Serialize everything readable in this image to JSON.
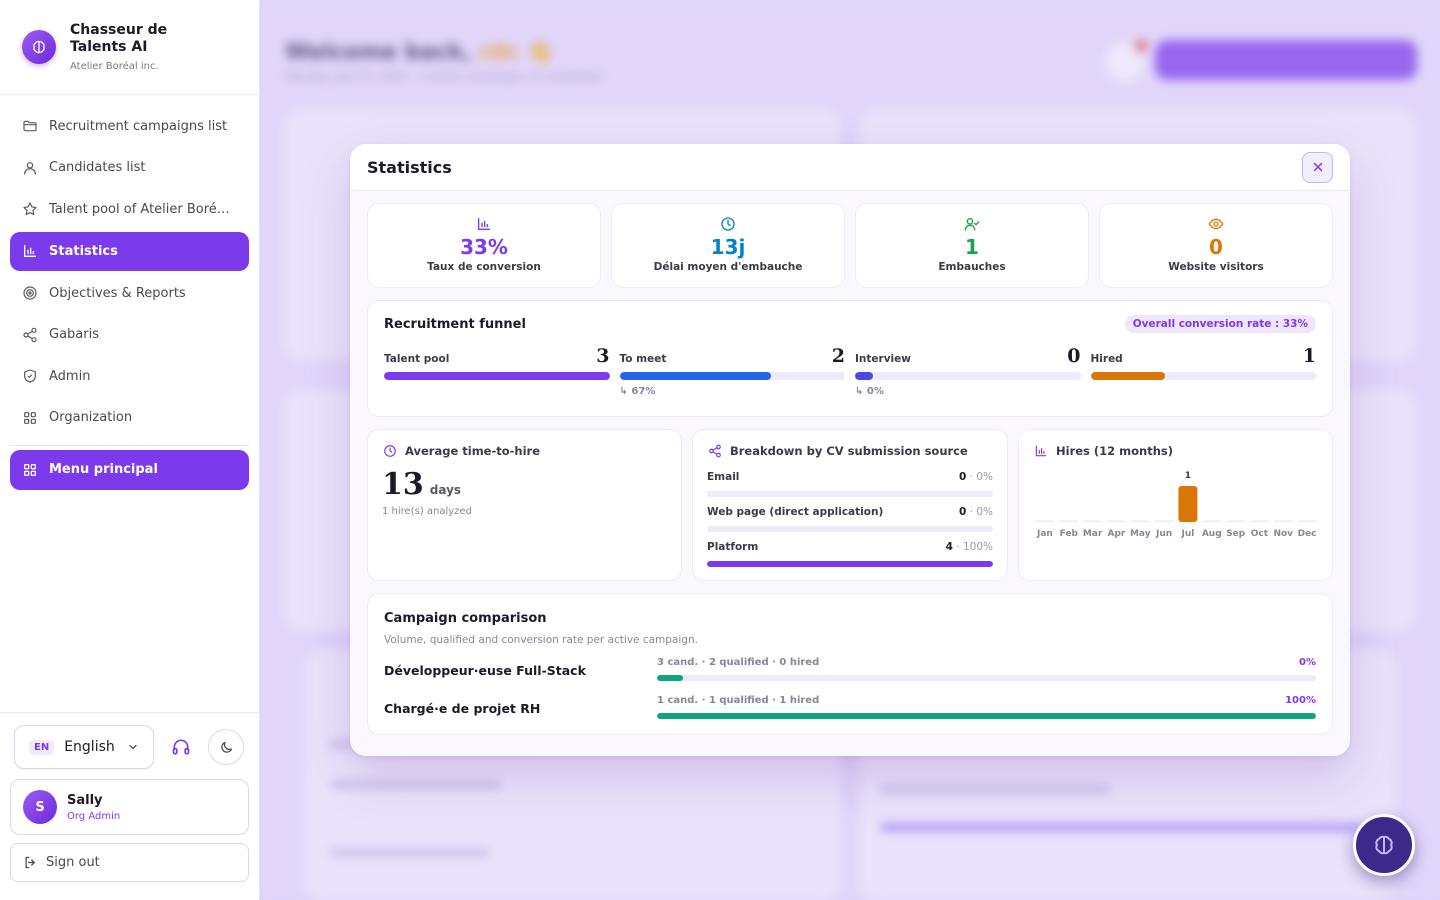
{
  "brand": {
    "name": "Chasseur de Talents AI",
    "org": "Atelier Boréal inc."
  },
  "nav": {
    "items": [
      {
        "label": "Recruitment campaigns list",
        "icon": "folder-icon"
      },
      {
        "label": "Candidates list",
        "icon": "user-icon"
      },
      {
        "label": "Talent pool of Atelier Boré…",
        "icon": "star-icon"
      },
      {
        "label": "Statistics",
        "icon": "bar-chart-icon",
        "active": true
      },
      {
        "label": "Objectives & Reports",
        "icon": "target-icon"
      },
      {
        "label": "Gabaris",
        "icon": "share-icon"
      },
      {
        "label": "Admin",
        "icon": "shield-icon"
      },
      {
        "label": "Organization",
        "icon": "grid-icon"
      }
    ],
    "menu_label": "Menu principal"
  },
  "footer": {
    "lang_code": "EN",
    "lang_label": "English",
    "user": {
      "initial": "S",
      "name": "Sally",
      "role": "Org Admin"
    },
    "signout": "Sign out"
  },
  "background": {
    "greeting": "Welcome back, ",
    "greeting_name": "rdc 👋",
    "subtitle": "Monday, July 21, 2025 · 2 active campaigns, 4 completed"
  },
  "modal": {
    "title": "Statistics",
    "kpis": [
      {
        "value": "33%",
        "label": "Taux de conversion",
        "icon": "bar-chart-icon",
        "color": "#7c3aed"
      },
      {
        "value": "13j",
        "label": "Délai moyen d'embauche",
        "icon": "clock-icon",
        "color": "#0284c7"
      },
      {
        "value": "1",
        "label": "Embauches",
        "icon": "user-check-icon",
        "color": "#16a34a"
      },
      {
        "value": "0",
        "label": "Website visitors",
        "icon": "eye-icon",
        "color": "#d97706"
      }
    ],
    "funnel": {
      "title": "Recruitment funnel",
      "overall": "Overall conversion rate : 33%",
      "stages": [
        {
          "name": "Talent pool",
          "count": "3",
          "fill": 1.0,
          "color": "#7c3aed",
          "pct": ""
        },
        {
          "name": "To meet",
          "count": "2",
          "fill": 0.67,
          "color": "#2563eb",
          "pct": "↳ 67%"
        },
        {
          "name": "Interview",
          "count": "0",
          "fill": 0.08,
          "color": "#4f46e5",
          "pct": "↳ 0%"
        },
        {
          "name": "Hired",
          "count": "1",
          "fill": 0.33,
          "color": "#d97706",
          "pct": ""
        }
      ]
    },
    "tth": {
      "title": "Average time-to-hire",
      "value": "13",
      "unit": "days",
      "note": "1 hire(s) analyzed"
    },
    "sources": {
      "title": "Breakdown by CV submission source",
      "rows": [
        {
          "name": "Email",
          "count": "0",
          "pct": " · 0%",
          "fill": 0
        },
        {
          "name": "Web page (direct application)",
          "count": "0",
          "pct": " · 0%",
          "fill": 0
        },
        {
          "name": "Platform",
          "count": "4",
          "pct": " · 100%",
          "fill": 1
        }
      ]
    },
    "hires": {
      "title": "Hires (12 months)"
    },
    "comparison": {
      "title": "Campaign comparison",
      "subtitle": "Volume, qualified and conversion rate per active campaign.",
      "rows": [
        {
          "name": "Développeur·euse Full-Stack",
          "meta": "3 cand. · 2 qualified · 0 hired",
          "pct": "0%",
          "fill": 0.04
        },
        {
          "name": "Chargé·e de projet RH",
          "meta": "1 cand. · 1 qualified · 1 hired",
          "pct": "100%",
          "fill": 1.0
        }
      ]
    }
  },
  "chart_data": {
    "type": "bar",
    "title": "Hires (12 months)",
    "categories": [
      "Jan",
      "Feb",
      "Mar",
      "Apr",
      "May",
      "Jun",
      "Jul",
      "Aug",
      "Sep",
      "Oct",
      "Nov",
      "Dec"
    ],
    "values": [
      0,
      0,
      0,
      0,
      0,
      0,
      1,
      0,
      0,
      0,
      0,
      0
    ],
    "ylim": [
      0,
      1
    ],
    "data_labels": [
      "",
      "",
      "",
      "",
      "",
      "",
      "1",
      "",
      "",
      "",
      "",
      ""
    ],
    "colors": {
      "bar": "#d97706",
      "empty": "#eeeaf7"
    },
    "grid": false
  }
}
